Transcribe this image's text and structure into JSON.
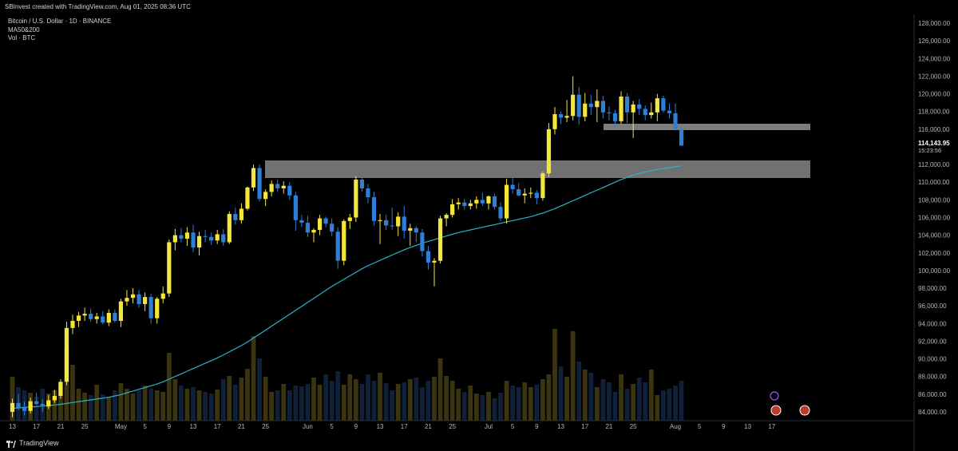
{
  "header": {
    "attribution": "SBInvest created with TradingView.com, Aug 01, 2025 08:36 UTC"
  },
  "legend": {
    "symbol": "Bitcoin / U.S. Dollar · 1D · BINANCE",
    "ma": "MA50&200",
    "vol": "Vol · BTC"
  },
  "brand": {
    "name": "TradingView"
  },
  "price_readout": {
    "price": "114,143.95",
    "countdown": "15:23:56"
  },
  "colors": {
    "up": "#f5e63c",
    "down": "#2e7fd6",
    "vol_up": "#3a3410",
    "vol_down": "#102038",
    "ma": "#2ab3c9",
    "zone": "#7a7a7a"
  },
  "chart_data": {
    "type": "candlestick",
    "title": "Bitcoin / U.S. Dollar · 1D · BINANCE",
    "ylim": [
      83000,
      129000
    ],
    "y_ticks": [
      "84,000.00",
      "86,000.00",
      "88,000.00",
      "90,000.00",
      "92,000.00",
      "94,000.00",
      "96,000.00",
      "98,000.00",
      "100,000.00",
      "102,000.00",
      "104,000.00",
      "106,000.00",
      "108,000.00",
      "110,000.00",
      "112,000.00",
      "116,000.00",
      "118,000.00",
      "120,000.00",
      "122,000.00",
      "124,000.00",
      "126,000.00",
      "128,000.00"
    ],
    "x_ticks": [
      {
        "label": "13",
        "i": 0
      },
      {
        "label": "17",
        "i": 4
      },
      {
        "label": "21",
        "i": 8
      },
      {
        "label": "25",
        "i": 12
      },
      {
        "label": "May",
        "i": 18
      },
      {
        "label": "5",
        "i": 22
      },
      {
        "label": "9",
        "i": 26
      },
      {
        "label": "13",
        "i": 30
      },
      {
        "label": "17",
        "i": 34
      },
      {
        "label": "21",
        "i": 38
      },
      {
        "label": "25",
        "i": 42
      },
      {
        "label": "Jun",
        "i": 49
      },
      {
        "label": "5",
        "i": 53
      },
      {
        "label": "9",
        "i": 57
      },
      {
        "label": "13",
        "i": 61
      },
      {
        "label": "17",
        "i": 65
      },
      {
        "label": "21",
        "i": 69
      },
      {
        "label": "25",
        "i": 73
      },
      {
        "label": "Jul",
        "i": 79
      },
      {
        "label": "5",
        "i": 83
      },
      {
        "label": "9",
        "i": 87
      },
      {
        "label": "13",
        "i": 91
      },
      {
        "label": "17",
        "i": 95
      },
      {
        "label": "21",
        "i": 99
      },
      {
        "label": "25",
        "i": 103
      },
      {
        "label": "Aug",
        "i": 110
      },
      {
        "label": "5",
        "i": 114
      },
      {
        "label": "9",
        "i": 118
      },
      {
        "label": "13",
        "i": 122
      },
      {
        "label": "17",
        "i": 126
      }
    ],
    "candles": [
      [
        84000,
        85500,
        83400,
        85000
      ],
      [
        85000,
        86000,
        84200,
        84500
      ],
      [
        84500,
        85200,
        83600,
        84100
      ],
      [
        84100,
        85600,
        83800,
        85200
      ],
      [
        85200,
        86200,
        84800,
        84900
      ],
      [
        84900,
        85400,
        84000,
        84600
      ],
      [
        84600,
        85900,
        84300,
        85300
      ],
      [
        85300,
        86500,
        85000,
        85800
      ],
      [
        85800,
        87700,
        85500,
        87400
      ],
      [
        87400,
        94200,
        87000,
        93500
      ],
      [
        93500,
        95000,
        92800,
        94300
      ],
      [
        94300,
        95300,
        93600,
        94900
      ],
      [
        94900,
        95800,
        94300,
        95100
      ],
      [
        95100,
        95700,
        94200,
        94500
      ],
      [
        94500,
        95200,
        94000,
        94800
      ],
      [
        94800,
        95400,
        93900,
        94100
      ],
      [
        94100,
        95600,
        93700,
        95200
      ],
      [
        95200,
        95600,
        94100,
        94300
      ],
      [
        94300,
        96800,
        93600,
        96500
      ],
      [
        96500,
        97800,
        96000,
        96900
      ],
      [
        96900,
        98000,
        96300,
        97300
      ],
      [
        97300,
        97800,
        95800,
        96200
      ],
      [
        96200,
        97500,
        95400,
        97000
      ],
      [
        97000,
        97400,
        94000,
        94600
      ],
      [
        94600,
        97000,
        94000,
        96800
      ],
      [
        96800,
        98200,
        96300,
        97400
      ],
      [
        97400,
        103500,
        97000,
        103200
      ],
      [
        103200,
        104700,
        102300,
        104000
      ],
      [
        104000,
        104800,
        103200,
        103600
      ],
      [
        103600,
        104900,
        102800,
        104300
      ],
      [
        104300,
        105200,
        102100,
        102600
      ],
      [
        102600,
        104400,
        101700,
        103900
      ],
      [
        103900,
        104600,
        103200,
        103800
      ],
      [
        103800,
        104300,
        102900,
        103400
      ],
      [
        103400,
        104600,
        103000,
        104100
      ],
      [
        104100,
        104700,
        102800,
        103200
      ],
      [
        103200,
        106700,
        103000,
        106400
      ],
      [
        106400,
        107100,
        105200,
        105700
      ],
      [
        105700,
        107600,
        105300,
        107000
      ],
      [
        107000,
        109500,
        106800,
        109400
      ],
      [
        109400,
        112000,
        109000,
        111600
      ],
      [
        111600,
        112000,
        107800,
        108100
      ],
      [
        108100,
        109200,
        107300,
        108900
      ],
      [
        108900,
        110200,
        108400,
        109800
      ],
      [
        109800,
        110300,
        108900,
        109300
      ],
      [
        109300,
        110100,
        108700,
        109600
      ],
      [
        109600,
        110000,
        108000,
        108500
      ],
      [
        108500,
        108900,
        104500,
        105700
      ],
      [
        105700,
        106300,
        104900,
        105400
      ],
      [
        105400,
        106200,
        103800,
        104300
      ],
      [
        104300,
        104800,
        103200,
        104600
      ],
      [
        104600,
        106300,
        104000,
        105900
      ],
      [
        105900,
        106100,
        104900,
        105300
      ],
      [
        105300,
        105900,
        103900,
        104400
      ],
      [
        104400,
        104900,
        100200,
        101100
      ],
      [
        101100,
        105800,
        100600,
        105600
      ],
      [
        105600,
        106400,
        104700,
        106000
      ],
      [
        106000,
        110700,
        105500,
        110300
      ],
      [
        110300,
        110600,
        108900,
        109300
      ],
      [
        109300,
        109800,
        107600,
        108300
      ],
      [
        108300,
        108900,
        105100,
        105600
      ],
      [
        105600,
        106400,
        103000,
        105700
      ],
      [
        105700,
        106300,
        104600,
        105100
      ],
      [
        105100,
        107100,
        104600,
        105000
      ],
      [
        105000,
        106600,
        103900,
        106100
      ],
      [
        106100,
        107300,
        103600,
        104500
      ],
      [
        104500,
        105300,
        102800,
        104800
      ],
      [
        104800,
        105000,
        103200,
        104300
      ],
      [
        104300,
        104700,
        101600,
        102200
      ],
      [
        102200,
        102800,
        100100,
        100900
      ],
      [
        100900,
        101400,
        98200,
        101100
      ],
      [
        101100,
        106200,
        100800,
        105900
      ],
      [
        105900,
        106500,
        105000,
        106300
      ],
      [
        106300,
        108100,
        106000,
        107500
      ],
      [
        107500,
        108200,
        106900,
        107700
      ],
      [
        107700,
        108100,
        106900,
        107300
      ],
      [
        107300,
        108000,
        106900,
        107600
      ],
      [
        107600,
        108400,
        107000,
        108000
      ],
      [
        108000,
        108800,
        107300,
        107600
      ],
      [
        107600,
        108500,
        106900,
        108400
      ],
      [
        108400,
        108700,
        106900,
        107200
      ],
      [
        107200,
        107700,
        105600,
        105900
      ],
      [
        105900,
        110400,
        105300,
        109700
      ],
      [
        109700,
        110700,
        108700,
        109200
      ],
      [
        109200,
        109900,
        108400,
        108500
      ],
      [
        108500,
        109300,
        107600,
        108700
      ],
      [
        108700,
        109400,
        108200,
        108800
      ],
      [
        108800,
        109100,
        107500,
        108200
      ],
      [
        108200,
        111200,
        107900,
        111000
      ],
      [
        111000,
        116700,
        110600,
        116000
      ],
      [
        116000,
        118500,
        115400,
        117700
      ],
      [
        117700,
        118000,
        116600,
        117300
      ],
      [
        117300,
        119300,
        116800,
        117500
      ],
      [
        117500,
        122000,
        117000,
        119900
      ],
      [
        119900,
        120800,
        116500,
        117400
      ],
      [
        117400,
        120100,
        116900,
        118900
      ],
      [
        118900,
        119900,
        117600,
        118500
      ],
      [
        118500,
        120500,
        116800,
        119200
      ],
      [
        119200,
        119800,
        117200,
        117900
      ],
      [
        117900,
        118600,
        117000,
        117800
      ],
      [
        117800,
        118200,
        116200,
        116900
      ],
      [
        116900,
        120300,
        116600,
        119700
      ],
      [
        119700,
        120100,
        116700,
        117900
      ],
      [
        117900,
        119200,
        115000,
        118800
      ],
      [
        118800,
        119400,
        117600,
        118300
      ],
      [
        118300,
        118700,
        117000,
        117600
      ],
      [
        117600,
        119000,
        117200,
        117900
      ],
      [
        117900,
        120000,
        116900,
        119500
      ],
      [
        119500,
        119800,
        117900,
        118100
      ],
      [
        118100,
        118900,
        117200,
        117800
      ],
      [
        117800,
        118900,
        115900,
        116000
      ],
      [
        116000,
        116200,
        114100,
        114144
      ]
    ],
    "volume": [
      55,
      42,
      38,
      35,
      30,
      40,
      34,
      38,
      45,
      90,
      70,
      40,
      35,
      32,
      45,
      33,
      30,
      38,
      47,
      40,
      34,
      38,
      44,
      40,
      38,
      36,
      85,
      52,
      44,
      40,
      42,
      38,
      36,
      34,
      39,
      52,
      56,
      45,
      54,
      65,
      106,
      78,
      55,
      36,
      38,
      46,
      38,
      44,
      43,
      46,
      54,
      45,
      58,
      50,
      62,
      45,
      58,
      52,
      46,
      58,
      50,
      60,
      47,
      38,
      46,
      48,
      52,
      54,
      42,
      50,
      55,
      78,
      56,
      50,
      40,
      36,
      44,
      34,
      32,
      36,
      28,
      35,
      50,
      44,
      42,
      48,
      42,
      45,
      52,
      58,
      115,
      68,
      55,
      112,
      74,
      64,
      60,
      42,
      52,
      48,
      36,
      58,
      40,
      46,
      54,
      48,
      64,
      32,
      38,
      40,
      44,
      50
    ],
    "ma": [
      84400,
      84450,
      84500,
      84550,
      84600,
      84650,
      84700,
      84780,
      84850,
      84950,
      85050,
      85150,
      85250,
      85350,
      85450,
      85550,
      85650,
      85800,
      85950,
      86150,
      86350,
      86550,
      86750,
      86950,
      87150,
      87400,
      87700,
      88000,
      88300,
      88600,
      88900,
      89200,
      89500,
      89800,
      90100,
      90450,
      90800,
      91150,
      91500,
      91900,
      92350,
      92800,
      93250,
      93700,
      94150,
      94600,
      95050,
      95500,
      95950,
      96400,
      96850,
      97300,
      97750,
      98200,
      98600,
      99000,
      99400,
      99800,
      100200,
      100550,
      100850,
      101150,
      101450,
      101750,
      102050,
      102350,
      102600,
      102850,
      103100,
      103300,
      103500,
      103700,
      103900,
      104100,
      104300,
      104450,
      104600,
      104750,
      104900,
      105050,
      105200,
      105350,
      105500,
      105650,
      105800,
      105950,
      106100,
      106300,
      106500,
      106750,
      107000,
      107300,
      107600,
      107900,
      108200,
      108500,
      108800,
      109100,
      109400,
      109700,
      110000,
      110300,
      110550,
      110800,
      111000,
      111150,
      111300,
      111450,
      111550,
      111650,
      111750,
      111850
    ]
  }
}
